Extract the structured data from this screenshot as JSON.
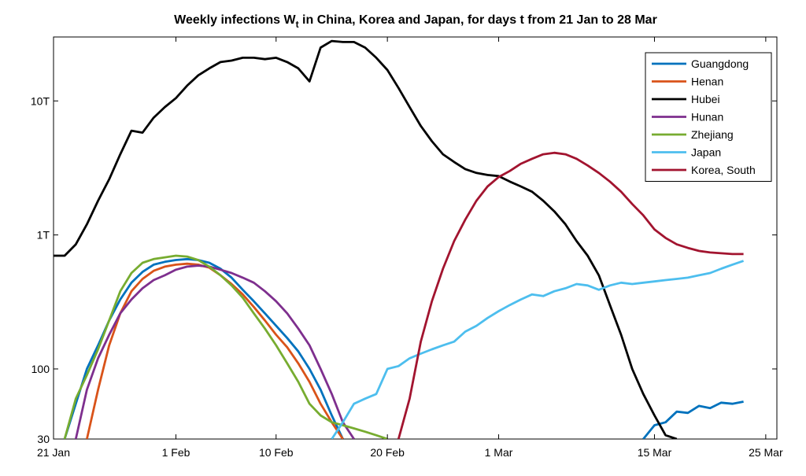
{
  "chart_data": {
    "type": "line",
    "title_main": "Weekly infections W",
    "title_sub": "t",
    "title_rest": " in China, Korea and Japan, for days t from  21 Jan to 28 Mar",
    "xlabel": "",
    "ylabel": "",
    "x_scale": "date",
    "x_range": [
      "21 Jan",
      "28 Mar"
    ],
    "x_ticks": [
      {
        "label": "21 Jan",
        "day": 0
      },
      {
        "label": "1 Feb",
        "day": 11
      },
      {
        "label": "10 Feb",
        "day": 20
      },
      {
        "label": "20 Feb",
        "day": 30
      },
      {
        "label": "1 Mar",
        "day": 40
      },
      {
        "label": "15 Mar",
        "day": 54
      },
      {
        "label": "25 Mar",
        "day": 64
      }
    ],
    "y_scale": "log",
    "y_range": [
      30,
      30000
    ],
    "y_ticks": [
      {
        "label": "30",
        "value": 30
      },
      {
        "label": "100",
        "value": 100
      },
      {
        "label": "1T",
        "value": 1000
      },
      {
        "label": "10T",
        "value": 10000
      }
    ],
    "grid": false,
    "legend_position": "top-right",
    "series": [
      {
        "name": "Guangdong",
        "color": "#0072BD",
        "points": [
          [
            1,
            30
          ],
          [
            2,
            55
          ],
          [
            3,
            100
          ],
          [
            4,
            150
          ],
          [
            5,
            230
          ],
          [
            6,
            330
          ],
          [
            7,
            440
          ],
          [
            8,
            530
          ],
          [
            9,
            600
          ],
          [
            10,
            630
          ],
          [
            11,
            650
          ],
          [
            12,
            660
          ],
          [
            13,
            650
          ],
          [
            14,
            620
          ],
          [
            15,
            560
          ],
          [
            16,
            480
          ],
          [
            17,
            390
          ],
          [
            18,
            320
          ],
          [
            19,
            260
          ],
          [
            20,
            210
          ],
          [
            21,
            170
          ],
          [
            22,
            135
          ],
          [
            23,
            100
          ],
          [
            24,
            70
          ],
          [
            25,
            45
          ],
          [
            26,
            30
          ],
          [
            53,
            30
          ],
          [
            54,
            38
          ],
          [
            55,
            40
          ],
          [
            56,
            48
          ],
          [
            57,
            47
          ],
          [
            58,
            53
          ],
          [
            59,
            51
          ],
          [
            60,
            56
          ],
          [
            61,
            55
          ],
          [
            62,
            57
          ]
        ]
      },
      {
        "name": "Henan",
        "color": "#D95319",
        "points": [
          [
            3,
            30
          ],
          [
            4,
            70
          ],
          [
            5,
            150
          ],
          [
            6,
            260
          ],
          [
            7,
            380
          ],
          [
            8,
            470
          ],
          [
            9,
            540
          ],
          [
            10,
            580
          ],
          [
            11,
            600
          ],
          [
            12,
            610
          ],
          [
            13,
            600
          ],
          [
            14,
            570
          ],
          [
            15,
            500
          ],
          [
            16,
            430
          ],
          [
            17,
            360
          ],
          [
            18,
            290
          ],
          [
            19,
            230
          ],
          [
            20,
            180
          ],
          [
            21,
            145
          ],
          [
            22,
            110
          ],
          [
            23,
            80
          ],
          [
            24,
            55
          ],
          [
            25,
            40
          ],
          [
            26,
            30
          ]
        ]
      },
      {
        "name": "Hubei",
        "color": "#000000",
        "points": [
          [
            0,
            700
          ],
          [
            1,
            700
          ],
          [
            2,
            850
          ],
          [
            3,
            1200
          ],
          [
            4,
            1800
          ],
          [
            5,
            2600
          ],
          [
            6,
            4000
          ],
          [
            7,
            6000
          ],
          [
            8,
            5800
          ],
          [
            9,
            7500
          ],
          [
            10,
            9000
          ],
          [
            11,
            10500
          ],
          [
            12,
            13000
          ],
          [
            13,
            15500
          ],
          [
            14,
            17500
          ],
          [
            15,
            19500
          ],
          [
            16,
            20000
          ],
          [
            17,
            21000
          ],
          [
            18,
            21000
          ],
          [
            19,
            20500
          ],
          [
            20,
            21000
          ],
          [
            21,
            19500
          ],
          [
            22,
            17500
          ],
          [
            23,
            14000
          ],
          [
            24,
            25000
          ],
          [
            25,
            28000
          ],
          [
            26,
            27500
          ],
          [
            27,
            27500
          ],
          [
            28,
            25000
          ],
          [
            29,
            21000
          ],
          [
            30,
            17000
          ],
          [
            31,
            12500
          ],
          [
            32,
            9000
          ],
          [
            33,
            6500
          ],
          [
            34,
            5000
          ],
          [
            35,
            4000
          ],
          [
            36,
            3500
          ],
          [
            37,
            3100
          ],
          [
            38,
            2900
          ],
          [
            39,
            2800
          ],
          [
            40,
            2750
          ],
          [
            41,
            2500
          ],
          [
            42,
            2300
          ],
          [
            43,
            2100
          ],
          [
            44,
            1800
          ],
          [
            45,
            1500
          ],
          [
            46,
            1200
          ],
          [
            47,
            900
          ],
          [
            48,
            700
          ],
          [
            49,
            500
          ],
          [
            50,
            300
          ],
          [
            51,
            180
          ],
          [
            52,
            100
          ],
          [
            53,
            65
          ],
          [
            54,
            45
          ],
          [
            55,
            32
          ],
          [
            56,
            30
          ]
        ]
      },
      {
        "name": "Hunan",
        "color": "#7E2F8E",
        "points": [
          [
            2,
            30
          ],
          [
            3,
            70
          ],
          [
            4,
            120
          ],
          [
            5,
            180
          ],
          [
            6,
            260
          ],
          [
            7,
            330
          ],
          [
            8,
            400
          ],
          [
            9,
            460
          ],
          [
            10,
            500
          ],
          [
            11,
            550
          ],
          [
            12,
            580
          ],
          [
            13,
            590
          ],
          [
            14,
            580
          ],
          [
            15,
            550
          ],
          [
            16,
            520
          ],
          [
            17,
            480
          ],
          [
            18,
            440
          ],
          [
            19,
            380
          ],
          [
            20,
            320
          ],
          [
            21,
            260
          ],
          [
            22,
            200
          ],
          [
            23,
            150
          ],
          [
            24,
            100
          ],
          [
            25,
            65
          ],
          [
            26,
            40
          ],
          [
            27,
            30
          ]
        ]
      },
      {
        "name": "Zhejiang",
        "color": "#77AC30",
        "points": [
          [
            1,
            30
          ],
          [
            2,
            60
          ],
          [
            3,
            90
          ],
          [
            4,
            140
          ],
          [
            5,
            230
          ],
          [
            6,
            380
          ],
          [
            7,
            520
          ],
          [
            8,
            620
          ],
          [
            9,
            660
          ],
          [
            10,
            680
          ],
          [
            11,
            700
          ],
          [
            12,
            690
          ],
          [
            13,
            650
          ],
          [
            14,
            580
          ],
          [
            15,
            500
          ],
          [
            16,
            420
          ],
          [
            17,
            340
          ],
          [
            18,
            260
          ],
          [
            19,
            200
          ],
          [
            20,
            150
          ],
          [
            21,
            110
          ],
          [
            22,
            80
          ],
          [
            23,
            55
          ],
          [
            24,
            45
          ],
          [
            25,
            40
          ],
          [
            26,
            38
          ],
          [
            27,
            36
          ],
          [
            28,
            34
          ],
          [
            29,
            32
          ],
          [
            30,
            30
          ]
        ]
      },
      {
        "name": "Japan",
        "color": "#4DBEEE",
        "points": [
          [
            25,
            30
          ],
          [
            26,
            40
          ],
          [
            27,
            55
          ],
          [
            28,
            60
          ],
          [
            29,
            65
          ],
          [
            30,
            100
          ],
          [
            31,
            105
          ],
          [
            32,
            120
          ],
          [
            33,
            130
          ],
          [
            34,
            140
          ],
          [
            35,
            150
          ],
          [
            36,
            160
          ],
          [
            37,
            190
          ],
          [
            38,
            210
          ],
          [
            39,
            240
          ],
          [
            40,
            270
          ],
          [
            41,
            300
          ],
          [
            42,
            330
          ],
          [
            43,
            360
          ],
          [
            44,
            350
          ],
          [
            45,
            380
          ],
          [
            46,
            400
          ],
          [
            47,
            430
          ],
          [
            48,
            420
          ],
          [
            49,
            390
          ],
          [
            50,
            420
          ],
          [
            51,
            440
          ],
          [
            52,
            430
          ],
          [
            53,
            440
          ],
          [
            54,
            450
          ],
          [
            55,
            460
          ],
          [
            56,
            470
          ],
          [
            57,
            480
          ],
          [
            58,
            500
          ],
          [
            59,
            520
          ],
          [
            60,
            560
          ],
          [
            61,
            600
          ],
          [
            62,
            640
          ]
        ]
      },
      {
        "name": "Korea, South",
        "color": "#A2142F",
        "points": [
          [
            31,
            30
          ],
          [
            32,
            60
          ],
          [
            33,
            160
          ],
          [
            34,
            320
          ],
          [
            35,
            560
          ],
          [
            36,
            900
          ],
          [
            37,
            1300
          ],
          [
            38,
            1800
          ],
          [
            39,
            2300
          ],
          [
            40,
            2700
          ],
          [
            41,
            3000
          ],
          [
            42,
            3400
          ],
          [
            43,
            3700
          ],
          [
            44,
            4000
          ],
          [
            45,
            4100
          ],
          [
            46,
            4000
          ],
          [
            47,
            3700
          ],
          [
            48,
            3300
          ],
          [
            49,
            2900
          ],
          [
            50,
            2500
          ],
          [
            51,
            2100
          ],
          [
            52,
            1700
          ],
          [
            53,
            1400
          ],
          [
            54,
            1100
          ],
          [
            55,
            950
          ],
          [
            56,
            850
          ],
          [
            57,
            800
          ],
          [
            58,
            760
          ],
          [
            59,
            740
          ],
          [
            60,
            730
          ],
          [
            61,
            720
          ],
          [
            62,
            720
          ]
        ]
      }
    ]
  }
}
